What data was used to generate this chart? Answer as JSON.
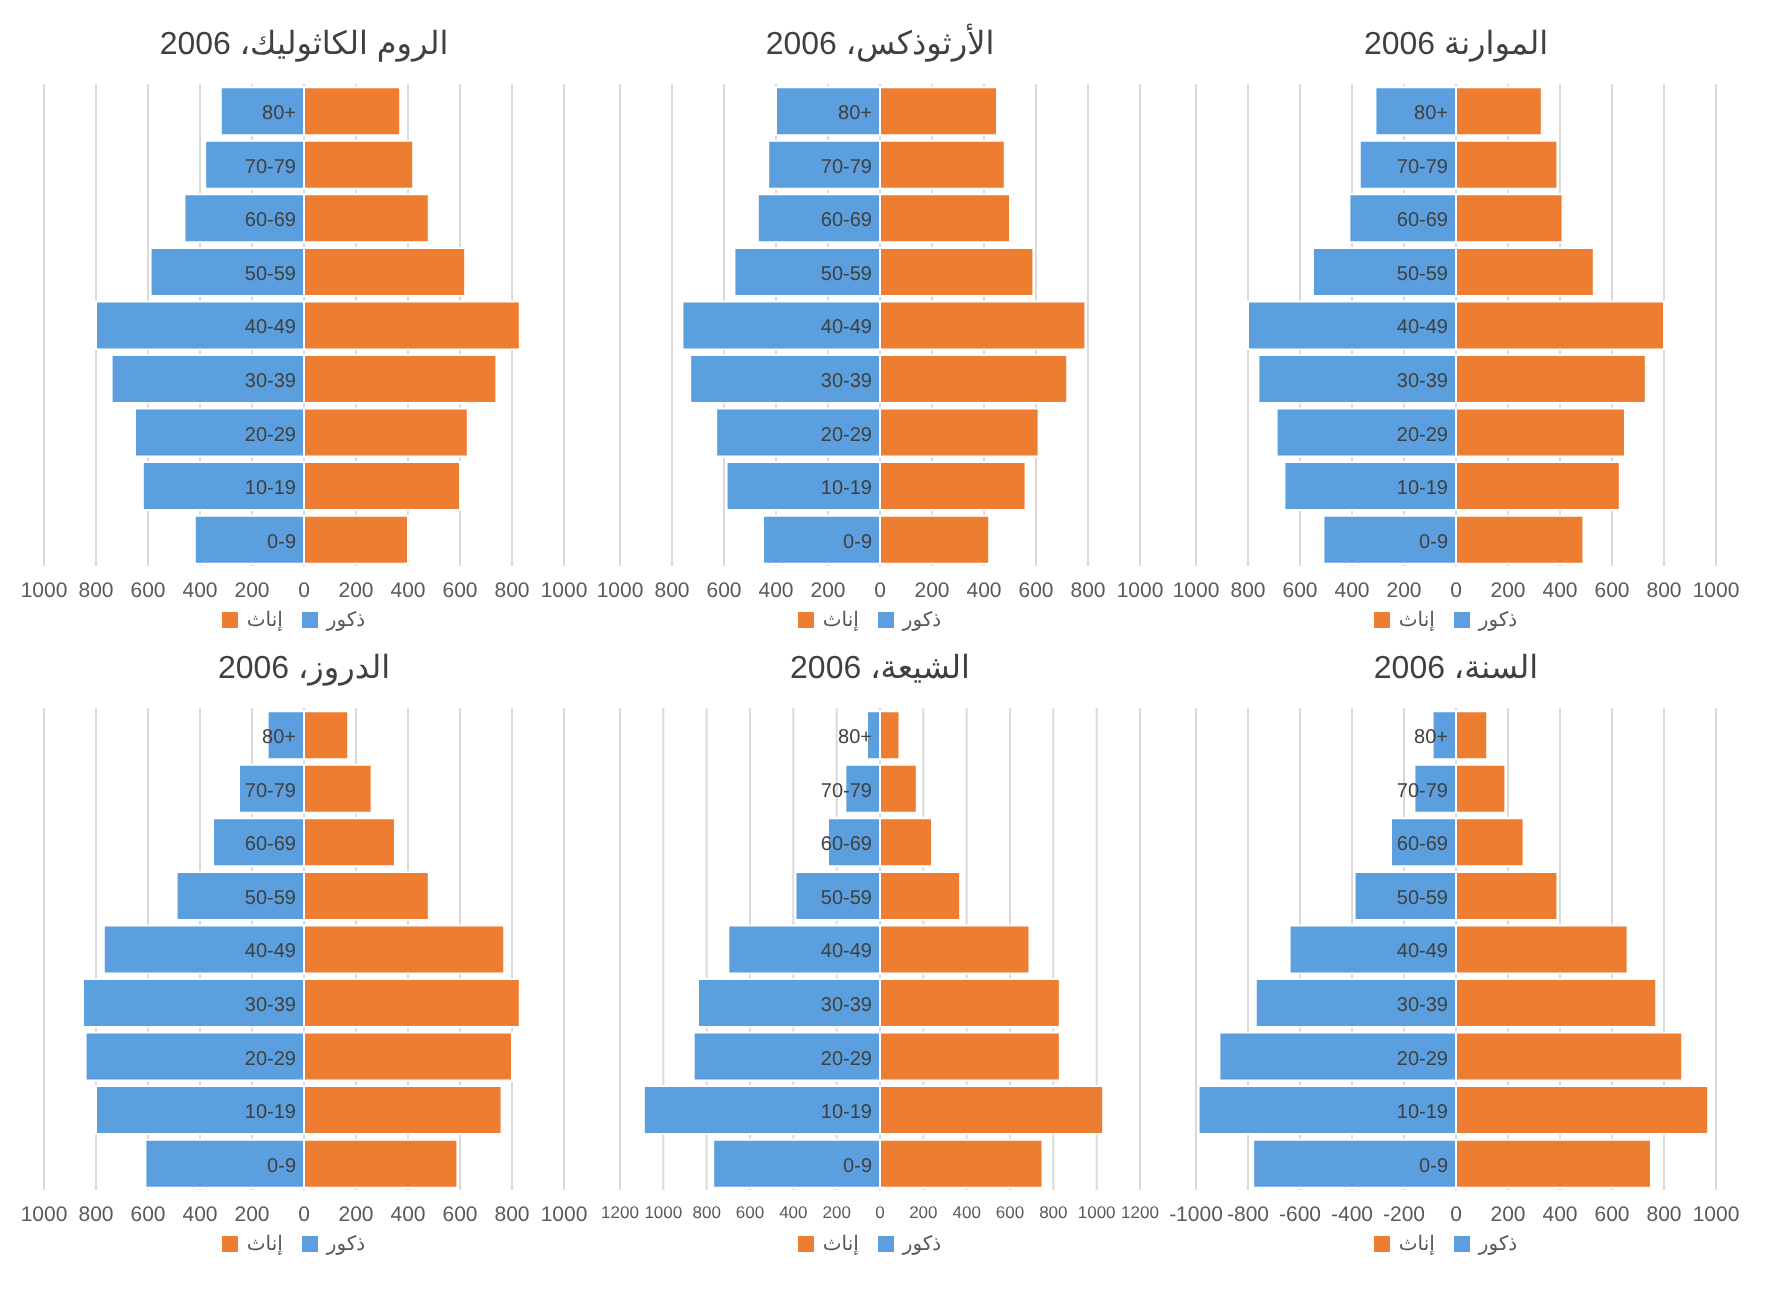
{
  "chart_data": [
    {
      "type": "bar",
      "orientation": "horizontal",
      "stacked": true,
      "title": "الروم الكاثوليك، 2006",
      "categories": [
        "80+",
        "70-79",
        "60-69",
        "50-59",
        "40-49",
        "30-39",
        "20-29",
        "10-19",
        "0-9"
      ],
      "series": [
        {
          "name": "ذكور",
          "color": "#5b9fdf",
          "values": [
            -320,
            -380,
            -460,
            -590,
            -800,
            -740,
            -650,
            -620,
            -420
          ]
        },
        {
          "name": "إناث",
          "color": "#ed7d31",
          "values": [
            370,
            420,
            480,
            620,
            830,
            740,
            630,
            600,
            400
          ]
        }
      ],
      "xlim": [
        -1000,
        1000
      ],
      "xticks": [
        {
          "value": -1000,
          "label": "1000"
        },
        {
          "value": -800,
          "label": "800"
        },
        {
          "value": -600,
          "label": "600"
        },
        {
          "value": -400,
          "label": "400"
        },
        {
          "value": -200,
          "label": "200"
        },
        0,
        200,
        400,
        600,
        800,
        1000
      ],
      "grid": "x",
      "legend": "bottom"
    },
    {
      "type": "bar",
      "orientation": "horizontal",
      "stacked": true,
      "title": "الأرثوذكس، 2006",
      "categories": [
        "80+",
        "70-79",
        "60-69",
        "50-59",
        "40-49",
        "30-39",
        "20-29",
        "10-19",
        "0-9"
      ],
      "series": [
        {
          "name": "ذكور",
          "color": "#5b9fdf",
          "values": [
            -400,
            -430,
            -470,
            -560,
            -760,
            -730,
            -630,
            -590,
            -450
          ]
        },
        {
          "name": "إناث",
          "color": "#ed7d31",
          "values": [
            450,
            480,
            500,
            590,
            790,
            720,
            610,
            560,
            420
          ]
        }
      ],
      "xlim": [
        -1000,
        1000
      ],
      "xticks": [
        {
          "value": -1000,
          "label": "1000"
        },
        {
          "value": -800,
          "label": "800"
        },
        {
          "value": -600,
          "label": "600"
        },
        {
          "value": -400,
          "label": "400"
        },
        {
          "value": -200,
          "label": "200"
        },
        0,
        200,
        400,
        600,
        800,
        1000
      ],
      "grid": "x",
      "legend": "bottom"
    },
    {
      "type": "bar",
      "orientation": "horizontal",
      "stacked": true,
      "title": "الموارنة 2006",
      "categories": [
        "80+",
        "70-79",
        "60-69",
        "50-59",
        "40-49",
        "30-39",
        "20-29",
        "10-19",
        "0-9"
      ],
      "series": [
        {
          "name": "ذكور",
          "color": "#5b9fdf",
          "values": [
            -310,
            -370,
            -410,
            -550,
            -800,
            -760,
            -690,
            -660,
            -510
          ]
        },
        {
          "name": "إناث",
          "color": "#ed7d31",
          "values": [
            330,
            390,
            410,
            530,
            800,
            730,
            650,
            630,
            490
          ]
        }
      ],
      "xlim": [
        -1000,
        1000
      ],
      "xticks": [
        {
          "value": -1000,
          "label": "1000"
        },
        {
          "value": -800,
          "label": "800"
        },
        {
          "value": -600,
          "label": "600"
        },
        {
          "value": -400,
          "label": "400"
        },
        {
          "value": -200,
          "label": "200"
        },
        0,
        200,
        400,
        600,
        800,
        1000
      ],
      "grid": "x",
      "legend": "bottom"
    },
    {
      "type": "bar",
      "orientation": "horizontal",
      "stacked": true,
      "title": "الدروز، 2006",
      "categories": [
        "80+",
        "70-79",
        "60-69",
        "50-59",
        "40-49",
        "30-39",
        "20-29",
        "10-19",
        "0-9"
      ],
      "series": [
        {
          "name": "ذكور",
          "color": "#5b9fdf",
          "values": [
            -140,
            -250,
            -350,
            -490,
            -770,
            -850,
            -840,
            -800,
            -610
          ]
        },
        {
          "name": "إناث",
          "color": "#ed7d31",
          "values": [
            170,
            260,
            350,
            480,
            770,
            830,
            800,
            760,
            590
          ]
        }
      ],
      "xlim": [
        -1000,
        1000
      ],
      "xticks": [
        {
          "value": -1000,
          "label": "1000"
        },
        {
          "value": -800,
          "label": "800"
        },
        {
          "value": -600,
          "label": "600"
        },
        {
          "value": -400,
          "label": "400"
        },
        {
          "value": -200,
          "label": "200"
        },
        0,
        200,
        400,
        600,
        800,
        1000
      ],
      "grid": "x",
      "legend": "bottom"
    },
    {
      "type": "bar",
      "orientation": "horizontal",
      "stacked": true,
      "title": "الشيعة، 2006",
      "categories": [
        "80+",
        "70-79",
        "60-69",
        "50-59",
        "40-49",
        "30-39",
        "20-29",
        "10-19",
        "0-9"
      ],
      "series": [
        {
          "name": "ذكور",
          "color": "#5b9fdf",
          "values": [
            -60,
            -160,
            -240,
            -390,
            -700,
            -840,
            -860,
            -1090,
            -770
          ]
        },
        {
          "name": "إناث",
          "color": "#ed7d31",
          "values": [
            90,
            170,
            240,
            370,
            690,
            830,
            830,
            1030,
            750
          ]
        }
      ],
      "xlim": [
        -1200,
        1200
      ],
      "xticks": [
        {
          "value": -1200,
          "label": "1200"
        },
        {
          "value": -1000,
          "label": "1000"
        },
        {
          "value": -800,
          "label": "800"
        },
        {
          "value": -600,
          "label": "600"
        },
        {
          "value": -400,
          "label": "400"
        },
        {
          "value": -200,
          "label": "200"
        },
        0,
        200,
        400,
        600,
        800,
        1000,
        1200
      ],
      "grid": "x",
      "legend": "bottom"
    },
    {
      "type": "bar",
      "orientation": "horizontal",
      "stacked": true,
      "title": "السنة، 2006",
      "categories": [
        "80+",
        "70-79",
        "60-69",
        "50-59",
        "40-49",
        "30-39",
        "20-29",
        "10-19",
        "0-9"
      ],
      "series": [
        {
          "name": "ذكور",
          "color": "#5b9fdf",
          "values": [
            -90,
            -160,
            -250,
            -390,
            -640,
            -770,
            -910,
            -990,
            -780
          ]
        },
        {
          "name": "إناث",
          "color": "#ed7d31",
          "values": [
            120,
            190,
            260,
            390,
            660,
            770,
            870,
            970,
            750
          ]
        }
      ],
      "xlim": [
        -1000,
        1000
      ],
      "xticks": [
        -1000,
        -800,
        -600,
        -400,
        -200,
        0,
        200,
        400,
        600,
        800,
        1000
      ],
      "grid": "x",
      "legend": "bottom"
    }
  ]
}
